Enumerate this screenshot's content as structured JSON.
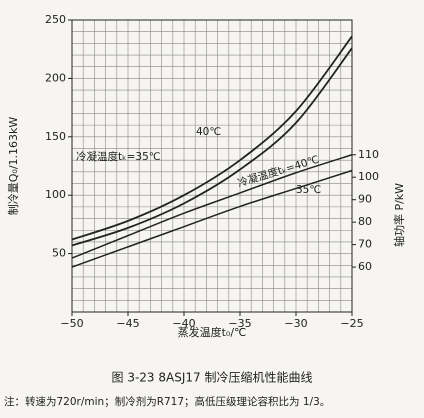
{
  "chart_data": {
    "type": "line",
    "caption": "图 3-23    8ASJ17 制冷压缩机性能曲线",
    "note": "注：转速为720r/min；制冷剂为R717；高低压级理论容积比为 1/3。",
    "xlabel": "蒸发温度t₀/℃",
    "ylabel": "制冷量Q₀/1.163kW",
    "y2label": "轴功率 P/kW",
    "x": [
      -50,
      -45,
      -40,
      -35,
      -30,
      -25
    ],
    "series": [
      {
        "name": "冷凝温度tₖ=35℃",
        "color": "#222222",
        "values": [
          62,
          78,
          100,
          130,
          172,
          236
        ]
      },
      {
        "name": "40℃",
        "color": "#222222",
        "values": [
          57,
          72,
          93,
          122,
          162,
          226
        ]
      },
      {
        "name": "冷凝温度tₖ=40℃",
        "color": "#222222",
        "axis": "y2",
        "values": [
          64,
          74,
          84,
          93,
          102,
          110
        ]
      },
      {
        "name": "35℃",
        "color": "#222222",
        "axis": "y2",
        "values": [
          60,
          69,
          78,
          87,
          95,
          103
        ]
      }
    ],
    "xlim": [
      -50,
      -25
    ],
    "xticks": [
      {
        "value": -50,
        "label": "−50"
      },
      {
        "value": -45,
        "label": "−45"
      },
      {
        "value": -40,
        "label": "−40"
      },
      {
        "value": -35,
        "label": "−35"
      },
      {
        "value": -30,
        "label": "−30"
      },
      {
        "value": -25,
        "label": "−25"
      }
    ],
    "ylim": [
      0,
      250
    ],
    "yticks": [
      50,
      100,
      150,
      200,
      250
    ],
    "y2lim": [
      40,
      170
    ],
    "y2ticks": [
      60,
      70,
      80,
      90,
      100,
      110
    ],
    "grid": true,
    "minor_grid": {
      "x": 1,
      "y": 10
    }
  }
}
